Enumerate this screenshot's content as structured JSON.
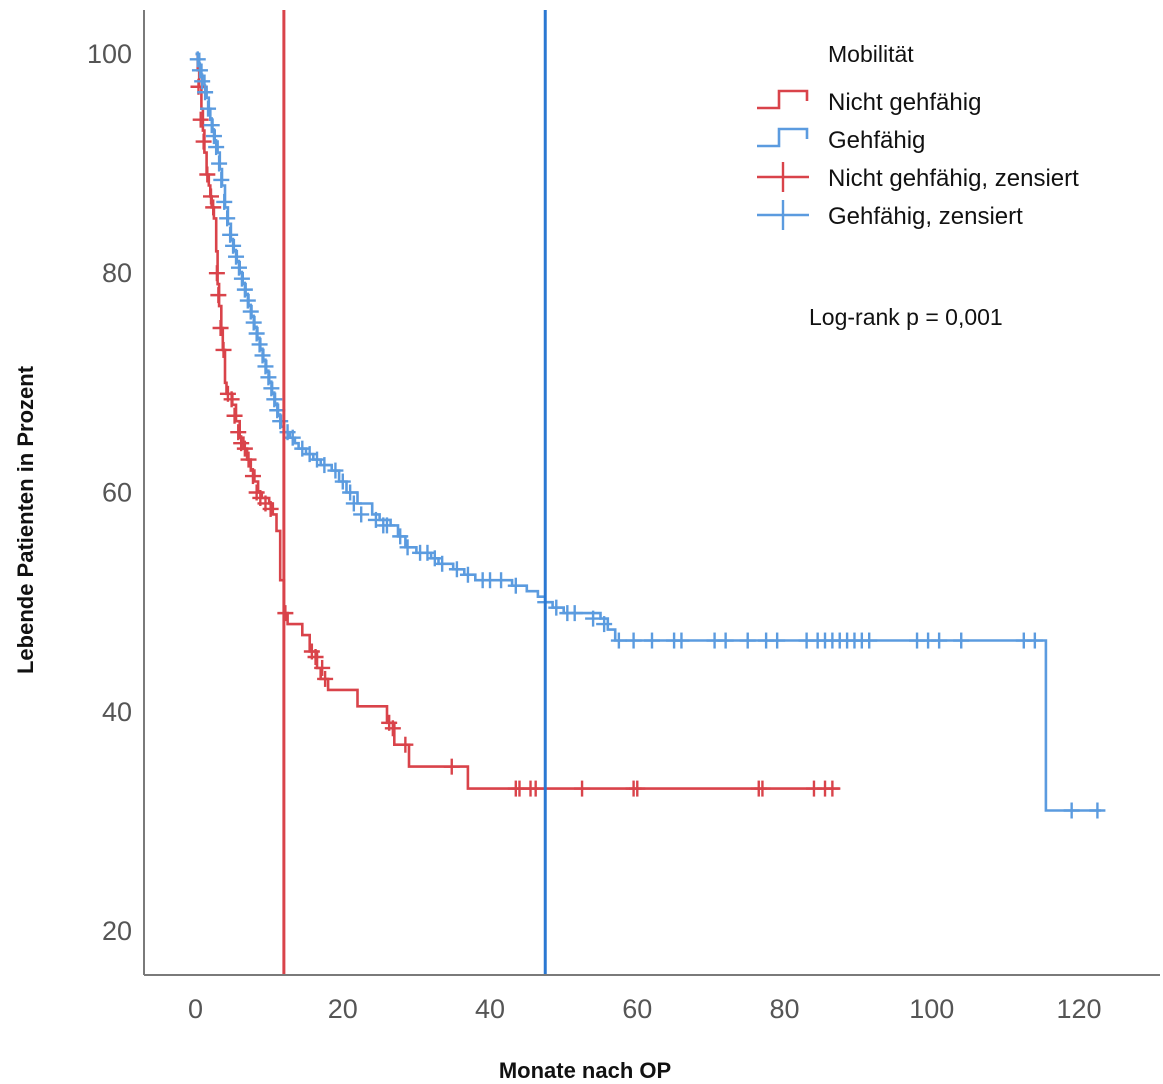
{
  "chart_data": {
    "type": "line",
    "subtype": "kaplan-meier",
    "title": "",
    "xlabel": "Monate nach OP",
    "ylabel": "Lebende Patienten in Prozent",
    "xlim": [
      -7,
      131
    ],
    "ylim": [
      16,
      104
    ],
    "xticks": [
      0,
      20,
      40,
      60,
      80,
      100,
      120
    ],
    "yticks": [
      20,
      40,
      60,
      80,
      100
    ],
    "grid": false,
    "legend": {
      "title": "Mobilität",
      "position": "top-right",
      "entries": [
        {
          "label": "Nicht gehfähig",
          "kind": "step",
          "color": "#d9434a"
        },
        {
          "label": "Gehfähig",
          "kind": "step",
          "color": "#5b9bdf"
        },
        {
          "label": "Nicht gehfähig, zensiert",
          "kind": "censor",
          "color": "#d9434a"
        },
        {
          "label": "Gehfähig, zensiert",
          "kind": "censor",
          "color": "#5b9bdf"
        }
      ]
    },
    "annotation": "Log-rank p = 0,001",
    "reference_lines": [
      {
        "x": 12,
        "color": "#d9434a"
      },
      {
        "x": 47.5,
        "color": "#2a78d2"
      }
    ],
    "series": [
      {
        "name": "Nicht gehfähig",
        "color": "#d9434a",
        "steps": [
          [
            0,
            100
          ],
          [
            0.3,
            98.5
          ],
          [
            0.5,
            97
          ],
          [
            0.8,
            95
          ],
          [
            1,
            93
          ],
          [
            1.2,
            91
          ],
          [
            1.5,
            89
          ],
          [
            1.8,
            88
          ],
          [
            2,
            87
          ],
          [
            2.2,
            86
          ],
          [
            2.5,
            85
          ],
          [
            2.8,
            82
          ],
          [
            3,
            79
          ],
          [
            3.2,
            77
          ],
          [
            3.5,
            75
          ],
          [
            3.7,
            73
          ],
          [
            4,
            70
          ],
          [
            4.2,
            69
          ],
          [
            5,
            68
          ],
          [
            5.5,
            66.5
          ],
          [
            6,
            65
          ],
          [
            6.5,
            64
          ],
          [
            7,
            63
          ],
          [
            7.5,
            62
          ],
          [
            8,
            61
          ],
          [
            8.5,
            60
          ],
          [
            9,
            59.5
          ],
          [
            10,
            59
          ],
          [
            10.5,
            58
          ],
          [
            11,
            56.5
          ],
          [
            11.5,
            52
          ],
          [
            12,
            49
          ],
          [
            12.5,
            48
          ],
          [
            14.5,
            47
          ],
          [
            15.5,
            45.5
          ],
          [
            16.5,
            44
          ],
          [
            17,
            43
          ],
          [
            18,
            42
          ],
          [
            22,
            40.5
          ],
          [
            26,
            39
          ],
          [
            27,
            37
          ],
          [
            29,
            35
          ],
          [
            37,
            33
          ],
          [
            87.5,
            33
          ]
        ],
        "censored": [
          [
            0.4,
            97
          ],
          [
            0.7,
            94
          ],
          [
            1.1,
            92
          ],
          [
            1.6,
            89
          ],
          [
            2.1,
            87
          ],
          [
            2.4,
            86
          ],
          [
            2.9,
            80
          ],
          [
            3.1,
            78
          ],
          [
            3.4,
            75
          ],
          [
            3.8,
            73
          ],
          [
            4.4,
            69
          ],
          [
            4.9,
            68.5
          ],
          [
            5.3,
            67
          ],
          [
            5.8,
            65.5
          ],
          [
            6.2,
            64.5
          ],
          [
            6.7,
            64
          ],
          [
            7.2,
            63
          ],
          [
            7.8,
            61.5
          ],
          [
            8.3,
            60
          ],
          [
            8.8,
            59.5
          ],
          [
            9.5,
            59
          ],
          [
            10.2,
            58.5
          ],
          [
            12.2,
            49
          ],
          [
            15.8,
            45.5
          ],
          [
            16.3,
            45
          ],
          [
            17.2,
            44
          ],
          [
            17.6,
            43
          ],
          [
            26.3,
            39
          ],
          [
            26.8,
            38.5
          ],
          [
            28.5,
            37
          ],
          [
            34.8,
            35
          ],
          [
            43.5,
            33
          ],
          [
            44,
            33
          ],
          [
            45.5,
            33
          ],
          [
            46.2,
            33
          ],
          [
            52.5,
            33
          ],
          [
            59.5,
            33
          ],
          [
            60,
            33
          ],
          [
            76.5,
            33
          ],
          [
            77,
            33
          ],
          [
            84,
            33
          ],
          [
            85.5,
            33
          ],
          [
            86.5,
            33
          ]
        ]
      },
      {
        "name": "Gehfähig",
        "color": "#5b9bdf",
        "steps": [
          [
            0,
            100
          ],
          [
            0.5,
            99
          ],
          [
            0.8,
            98
          ],
          [
            1.2,
            97
          ],
          [
            1.5,
            96
          ],
          [
            1.8,
            95
          ],
          [
            2,
            94
          ],
          [
            2.3,
            93
          ],
          [
            2.6,
            92
          ],
          [
            3,
            91
          ],
          [
            3.3,
            89.5
          ],
          [
            3.6,
            88
          ],
          [
            4,
            86
          ],
          [
            4.4,
            84.5
          ],
          [
            4.8,
            83
          ],
          [
            5.2,
            82
          ],
          [
            5.6,
            81
          ],
          [
            6,
            80
          ],
          [
            6.4,
            79
          ],
          [
            6.8,
            78
          ],
          [
            7.2,
            77
          ],
          [
            7.6,
            76
          ],
          [
            8,
            75
          ],
          [
            8.4,
            74
          ],
          [
            8.8,
            73
          ],
          [
            9.2,
            72
          ],
          [
            9.6,
            71
          ],
          [
            10,
            70
          ],
          [
            10.4,
            69
          ],
          [
            10.8,
            68
          ],
          [
            11.2,
            67
          ],
          [
            11.6,
            66
          ],
          [
            12,
            65.5
          ],
          [
            12.8,
            65
          ],
          [
            13.5,
            64.5
          ],
          [
            14,
            64
          ],
          [
            15,
            63.5
          ],
          [
            16,
            63
          ],
          [
            17,
            62.5
          ],
          [
            18.5,
            62
          ],
          [
            19.5,
            61
          ],
          [
            20.5,
            60
          ],
          [
            22,
            59
          ],
          [
            24,
            58
          ],
          [
            25,
            57.5
          ],
          [
            26.5,
            57
          ],
          [
            27.5,
            56
          ],
          [
            28.5,
            55
          ],
          [
            30,
            54.5
          ],
          [
            32,
            54
          ],
          [
            33,
            53.5
          ],
          [
            35,
            53
          ],
          [
            36.5,
            52.5
          ],
          [
            38,
            52
          ],
          [
            43,
            51.5
          ],
          [
            45,
            51
          ],
          [
            46.5,
            50.5
          ],
          [
            47.5,
            50
          ],
          [
            48.5,
            49.5
          ],
          [
            50,
            49
          ],
          [
            55,
            48.5
          ],
          [
            56,
            47.5
          ],
          [
            57,
            46.5
          ],
          [
            115,
            46.5
          ],
          [
            115.5,
            31
          ],
          [
            123,
            31
          ]
        ],
        "censored": [
          [
            0.3,
            99.5
          ],
          [
            0.6,
            98.5
          ],
          [
            0.9,
            97.5
          ],
          [
            1.3,
            96.5
          ],
          [
            1.7,
            95
          ],
          [
            2.2,
            93.5
          ],
          [
            2.5,
            92.5
          ],
          [
            2.8,
            91.5
          ],
          [
            3.2,
            90
          ],
          [
            3.5,
            88.5
          ],
          [
            3.9,
            86.5
          ],
          [
            4.3,
            85
          ],
          [
            4.7,
            83.5
          ],
          [
            5.1,
            82.5
          ],
          [
            5.5,
            81.5
          ],
          [
            5.9,
            80.5
          ],
          [
            6.3,
            79.5
          ],
          [
            6.7,
            78.5
          ],
          [
            7.1,
            77.5
          ],
          [
            7.5,
            76.5
          ],
          [
            7.9,
            75.5
          ],
          [
            8.3,
            74.5
          ],
          [
            8.7,
            73.5
          ],
          [
            9.1,
            72.5
          ],
          [
            9.5,
            71.5
          ],
          [
            9.9,
            70.5
          ],
          [
            10.3,
            69.5
          ],
          [
            10.7,
            68.5
          ],
          [
            11.1,
            67.5
          ],
          [
            11.5,
            66.5
          ],
          [
            12.5,
            65.5
          ],
          [
            13.2,
            65
          ],
          [
            14.5,
            64
          ],
          [
            15.5,
            63.5
          ],
          [
            16.5,
            63
          ],
          [
            17.5,
            62.5
          ],
          [
            19,
            62
          ],
          [
            20,
            61
          ],
          [
            21,
            60
          ],
          [
            21.5,
            59
          ],
          [
            22.5,
            58
          ],
          [
            24.5,
            57.5
          ],
          [
            25.5,
            57
          ],
          [
            26,
            57
          ],
          [
            27.8,
            56
          ],
          [
            28.8,
            55
          ],
          [
            30.5,
            54.5
          ],
          [
            31.5,
            54.5
          ],
          [
            32.5,
            54
          ],
          [
            33.5,
            53.5
          ],
          [
            35.5,
            53
          ],
          [
            37,
            52.5
          ],
          [
            39,
            52
          ],
          [
            40,
            52
          ],
          [
            41.5,
            52
          ],
          [
            43.5,
            51.5
          ],
          [
            47.5,
            50
          ],
          [
            49,
            49.5
          ],
          [
            50.5,
            49
          ],
          [
            51.5,
            49
          ],
          [
            54,
            48.5
          ],
          [
            55.5,
            48
          ],
          [
            57.5,
            46.5
          ],
          [
            59.5,
            46.5
          ],
          [
            62,
            46.5
          ],
          [
            65,
            46.5
          ],
          [
            66,
            46.5
          ],
          [
            70.5,
            46.5
          ],
          [
            72,
            46.5
          ],
          [
            75,
            46.5
          ],
          [
            77.5,
            46.5
          ],
          [
            79,
            46.5
          ],
          [
            83,
            46.5
          ],
          [
            84.5,
            46.5
          ],
          [
            85.5,
            46.5
          ],
          [
            86.5,
            46.5
          ],
          [
            87.5,
            46.5
          ],
          [
            88.5,
            46.5
          ],
          [
            89.5,
            46.5
          ],
          [
            90.5,
            46.5
          ],
          [
            91.5,
            46.5
          ],
          [
            98,
            46.5
          ],
          [
            99.5,
            46.5
          ],
          [
            101,
            46.5
          ],
          [
            104,
            46.5
          ],
          [
            112.5,
            46.5
          ],
          [
            114,
            46.5
          ],
          [
            119,
            31
          ],
          [
            122.5,
            31
          ]
        ]
      }
    ]
  }
}
